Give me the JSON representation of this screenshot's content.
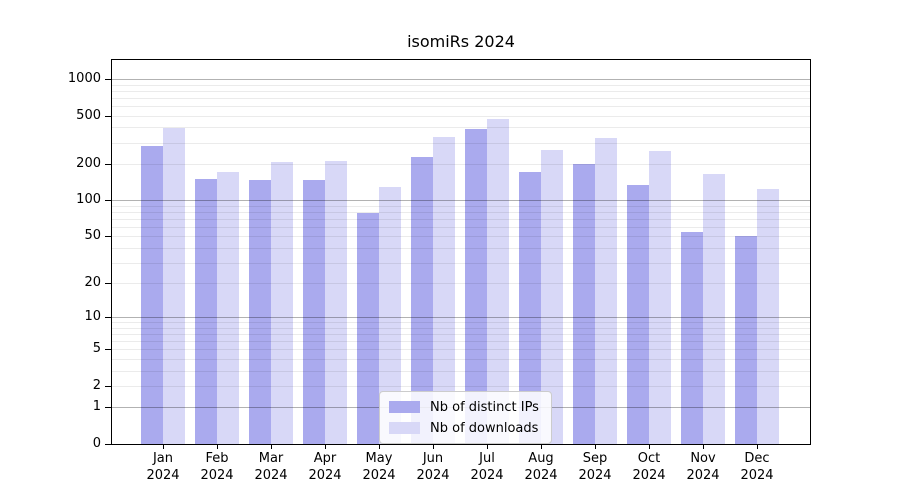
{
  "title": "isomiRs 2024",
  "chart_data": {
    "type": "bar",
    "title": "isomiRs 2024",
    "yscale": "log1p",
    "grid": true,
    "categories": [
      "Jan",
      "Feb",
      "Mar",
      "Apr",
      "May",
      "Jun",
      "Jul",
      "Aug",
      "Sep",
      "Oct",
      "Nov",
      "Dec"
    ],
    "year": "2024",
    "series": [
      {
        "name": "Nb of distinct IPs",
        "color": "#aaaaee",
        "values": [
          281,
          150,
          147,
          148,
          78,
          228,
          388,
          171,
          198,
          134,
          54,
          50
        ]
      },
      {
        "name": "Nb of downloads",
        "color": "#d8d8f7",
        "values": [
          396,
          170,
          207,
          211,
          129,
          330,
          469,
          260,
          325,
          255,
          165,
          124
        ]
      }
    ],
    "yticks": [
      0,
      1,
      2,
      5,
      10,
      20,
      50,
      100,
      200,
      500,
      1000
    ],
    "ylim": [
      0,
      1434
    ],
    "xlabel": "",
    "ylabel": "",
    "legend_position": "inside-bottom-center"
  },
  "colors": {
    "axis": "#000000",
    "major_grid": "rgba(0,0,0,0.30)",
    "minor_grid": "rgba(0,0,0,0.08)",
    "background": "#ffffff"
  }
}
